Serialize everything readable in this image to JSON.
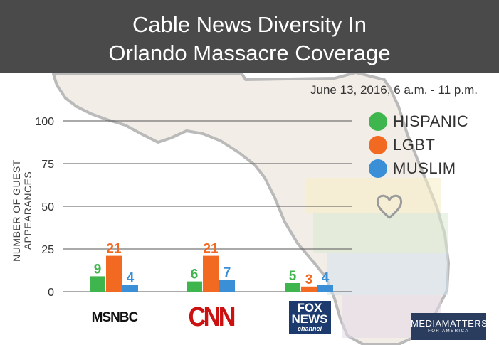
{
  "chart_data": {
    "type": "bar",
    "title_lines": [
      "Cable News Diversity In",
      "Orlando Massacre Coverage"
    ],
    "subtitle": "June 13, 2016, 6 a.m. - 11 p.m.",
    "ylabel": "NUMBER OF GUEST APPEARANCES",
    "xlabel": "",
    "ylim": [
      0,
      100
    ],
    "yticks": [
      0,
      25,
      50,
      75,
      100
    ],
    "grid": true,
    "legend_position": "top-right",
    "categories": [
      "MSNBC",
      "CNN",
      "FOX NEWS"
    ],
    "series": [
      {
        "name": "HISPANIC",
        "color": "#3fb54d",
        "values": [
          9,
          6,
          5
        ]
      },
      {
        "name": "LGBT",
        "color": "#f26a22",
        "values": [
          21,
          21,
          3
        ]
      },
      {
        "name": "MUSLIM",
        "color": "#3a8fd6",
        "values": [
          4,
          7,
          4
        ]
      }
    ]
  },
  "logos": {
    "msnbc": "MSNBC",
    "cnn": "CNN",
    "fox": [
      "FOX",
      "NEWS",
      "channel"
    ],
    "media_matters": [
      "MEDIAMATTERS",
      "FOR AMERICA"
    ]
  },
  "colors": {
    "title_bar": "#4a4a4a",
    "grid": "#555555"
  }
}
